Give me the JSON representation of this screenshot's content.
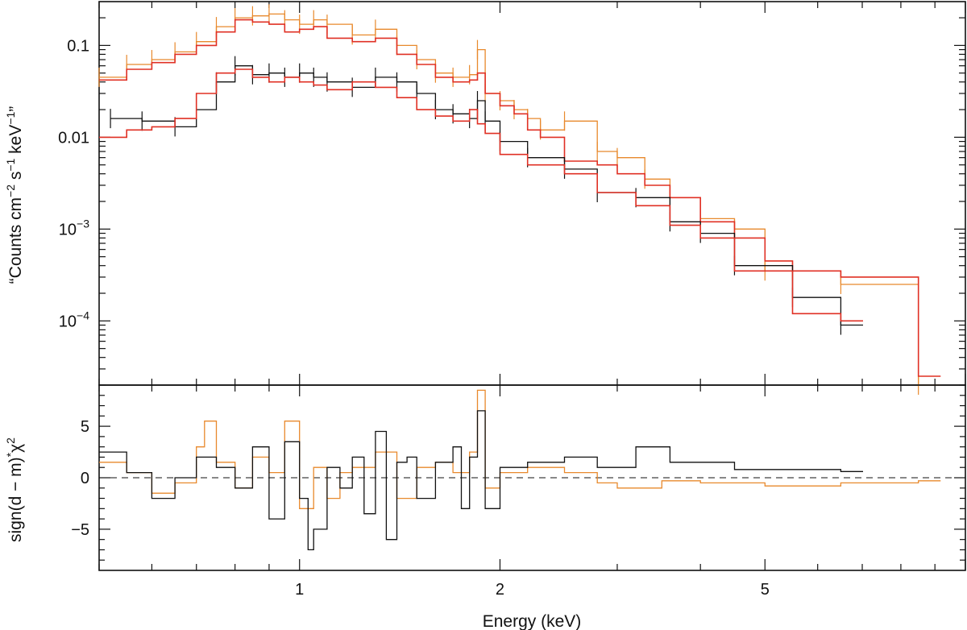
{
  "chart_data": [
    {
      "panel": "spectrum",
      "type": "line",
      "x_scale": "log",
      "y_scale": "log",
      "xlim": [
        0.5,
        10
      ],
      "ylim": [
        2e-05,
        0.3
      ],
      "ylabel": "“Counts cm^-2 s^-1 keV^-1”",
      "ylabel_parts": [
        "“Counts cm",
        "−2",
        " s",
        "−1",
        " keV",
        "−1",
        "”"
      ],
      "y_tick_labels": [
        {
          "value": 0.1,
          "label": "0.1"
        },
        {
          "value": 0.01,
          "label": "0.01"
        },
        {
          "value": 0.001,
          "base": "10",
          "exp": "−3"
        },
        {
          "value": 0.0001,
          "base": "10",
          "exp": "−4"
        }
      ],
      "series": [
        {
          "color": "#e8892c",
          "kind": "data",
          "x": [
            0.5,
            0.55,
            0.6,
            0.65,
            0.7,
            0.75,
            0.8,
            0.85,
            0.9,
            0.95,
            1.0,
            1.05,
            1.1,
            1.2,
            1.3,
            1.4,
            1.5,
            1.6,
            1.7,
            1.8,
            1.85,
            1.9,
            2.0,
            2.1,
            2.2,
            2.3,
            2.5,
            2.8,
            3.0,
            3.3,
            3.6,
            4.0,
            4.5,
            5.0,
            5.5,
            6.5,
            8.5
          ],
          "y": [
            0.045,
            0.062,
            0.07,
            0.085,
            0.11,
            0.16,
            0.2,
            0.21,
            0.22,
            0.19,
            0.17,
            0.19,
            0.17,
            0.13,
            0.15,
            0.1,
            0.07,
            0.05,
            0.045,
            0.048,
            0.09,
            0.03,
            0.025,
            0.02,
            0.016,
            0.012,
            0.015,
            0.007,
            0.006,
            0.0035,
            0.0022,
            0.0013,
            0.001,
            0.00035,
            0.00035,
            0.00025,
            2e-05
          ]
        },
        {
          "color": "#e03024",
          "kind": "model",
          "x": [
            0.5,
            0.55,
            0.6,
            0.65,
            0.7,
            0.75,
            0.8,
            0.85,
            0.9,
            0.95,
            1.0,
            1.05,
            1.1,
            1.2,
            1.3,
            1.4,
            1.5,
            1.6,
            1.7,
            1.8,
            1.85,
            1.9,
            2.0,
            2.1,
            2.2,
            2.3,
            2.5,
            2.8,
            3.0,
            3.3,
            3.6,
            4.0,
            4.5,
            5.0,
            5.5,
            6.5,
            8.5
          ],
          "y": [
            0.042,
            0.055,
            0.065,
            0.08,
            0.1,
            0.14,
            0.19,
            0.18,
            0.17,
            0.14,
            0.15,
            0.16,
            0.12,
            0.11,
            0.12,
            0.08,
            0.062,
            0.045,
            0.04,
            0.042,
            0.05,
            0.03,
            0.022,
            0.018,
            0.012,
            0.01,
            0.0055,
            0.005,
            0.004,
            0.003,
            0.0022,
            0.0012,
            0.0008,
            0.00045,
            0.00035,
            0.0003,
            2.5e-05
          ]
        },
        {
          "color": "#111111",
          "kind": "data",
          "x": [
            0.52,
            0.58,
            0.65,
            0.7,
            0.75,
            0.8,
            0.85,
            0.9,
            0.95,
            1.0,
            1.05,
            1.1,
            1.2,
            1.3,
            1.4,
            1.5,
            1.6,
            1.7,
            1.8,
            1.85,
            1.9,
            2.0,
            2.2,
            2.5,
            2.8,
            3.2,
            3.6,
            4.0,
            4.5,
            5.5,
            6.5
          ],
          "y": [
            0.016,
            0.015,
            0.013,
            0.02,
            0.04,
            0.06,
            0.048,
            0.05,
            0.045,
            0.05,
            0.045,
            0.04,
            0.035,
            0.045,
            0.04,
            0.03,
            0.02,
            0.018,
            0.016,
            0.025,
            0.015,
            0.009,
            0.006,
            0.0045,
            0.0025,
            0.0022,
            0.0012,
            0.0009,
            0.0004,
            0.00018,
            9e-05
          ]
        },
        {
          "color": "#e03024",
          "kind": "model",
          "x": [
            0.5,
            0.55,
            0.6,
            0.65,
            0.7,
            0.75,
            0.8,
            0.85,
            0.9,
            0.95,
            1.0,
            1.05,
            1.1,
            1.2,
            1.3,
            1.4,
            1.5,
            1.6,
            1.7,
            1.8,
            1.85,
            1.9,
            2.0,
            2.2,
            2.5,
            2.8,
            3.2,
            3.6,
            4.0,
            4.5,
            5.5,
            6.5
          ],
          "y": [
            0.01,
            0.012,
            0.013,
            0.016,
            0.03,
            0.05,
            0.055,
            0.045,
            0.04,
            0.045,
            0.04,
            0.037,
            0.033,
            0.04,
            0.035,
            0.027,
            0.02,
            0.017,
            0.015,
            0.02,
            0.014,
            0.011,
            0.0065,
            0.005,
            0.004,
            0.0025,
            0.0018,
            0.0011,
            0.0008,
            0.00035,
            0.00012,
            0.0001
          ]
        }
      ]
    },
    {
      "panel": "residuals",
      "type": "line",
      "x_scale": "log",
      "xlim": [
        0.5,
        10
      ],
      "ylim": [
        -9,
        9
      ],
      "xlabel": "Energy (keV)",
      "ylabel": "sign(d−m)*χ^2",
      "ylabel_parts": [
        "sign(d − m)",
        "*",
        "χ",
        "2"
      ],
      "x_tick_labels": [
        {
          "value": 1,
          "label": "1"
        },
        {
          "value": 2,
          "label": "2"
        },
        {
          "value": 5,
          "label": "5"
        }
      ],
      "y_tick_labels": [
        {
          "value": 5,
          "label": "5"
        },
        {
          "value": 0,
          "label": "0"
        },
        {
          "value": -5,
          "label": "−5"
        }
      ],
      "zero_line": true,
      "series": [
        {
          "color": "#e8892c",
          "kind": "residual",
          "x": [
            0.5,
            0.55,
            0.6,
            0.65,
            0.7,
            0.72,
            0.75,
            0.8,
            0.85,
            0.9,
            0.95,
            1.0,
            1.05,
            1.1,
            1.15,
            1.2,
            1.3,
            1.4,
            1.5,
            1.6,
            1.7,
            1.8,
            1.85,
            1.9,
            2.0,
            2.2,
            2.5,
            2.8,
            3.0,
            3.5,
            4.0,
            5.0,
            6.5,
            8.5
          ],
          "y": [
            1.5,
            0.5,
            -1.5,
            -0.5,
            3,
            5.5,
            1.5,
            -1,
            2,
            0.5,
            5.5,
            -3,
            1,
            -2,
            0.5,
            1,
            2.5,
            -2,
            1,
            1.5,
            0.5,
            2.5,
            8.5,
            -1,
            0.5,
            1,
            0.5,
            -0.5,
            -1,
            -0.3,
            -0.5,
            -0.8,
            -0.5,
            -0.3
          ]
        },
        {
          "color": "#111111",
          "kind": "residual",
          "x": [
            0.5,
            0.55,
            0.6,
            0.65,
            0.7,
            0.75,
            0.8,
            0.85,
            0.9,
            0.95,
            1.0,
            1.03,
            1.05,
            1.1,
            1.15,
            1.2,
            1.25,
            1.3,
            1.35,
            1.4,
            1.45,
            1.5,
            1.6,
            1.7,
            1.75,
            1.8,
            1.85,
            1.9,
            2.0,
            2.2,
            2.5,
            2.8,
            3.2,
            3.6,
            4.5,
            5.5,
            6.5
          ],
          "y": [
            2.5,
            0.5,
            -2,
            0,
            2,
            1,
            -1,
            3,
            -4,
            3.5,
            -2,
            -7,
            -5,
            1,
            -1,
            2,
            -3.5,
            4.5,
            -6,
            1.5,
            2,
            -2,
            1.5,
            3,
            -3,
            2,
            6.5,
            -3,
            1,
            1.5,
            2,
            1,
            3,
            1.5,
            0.8,
            0.8,
            0.6
          ]
        }
      ]
    }
  ]
}
